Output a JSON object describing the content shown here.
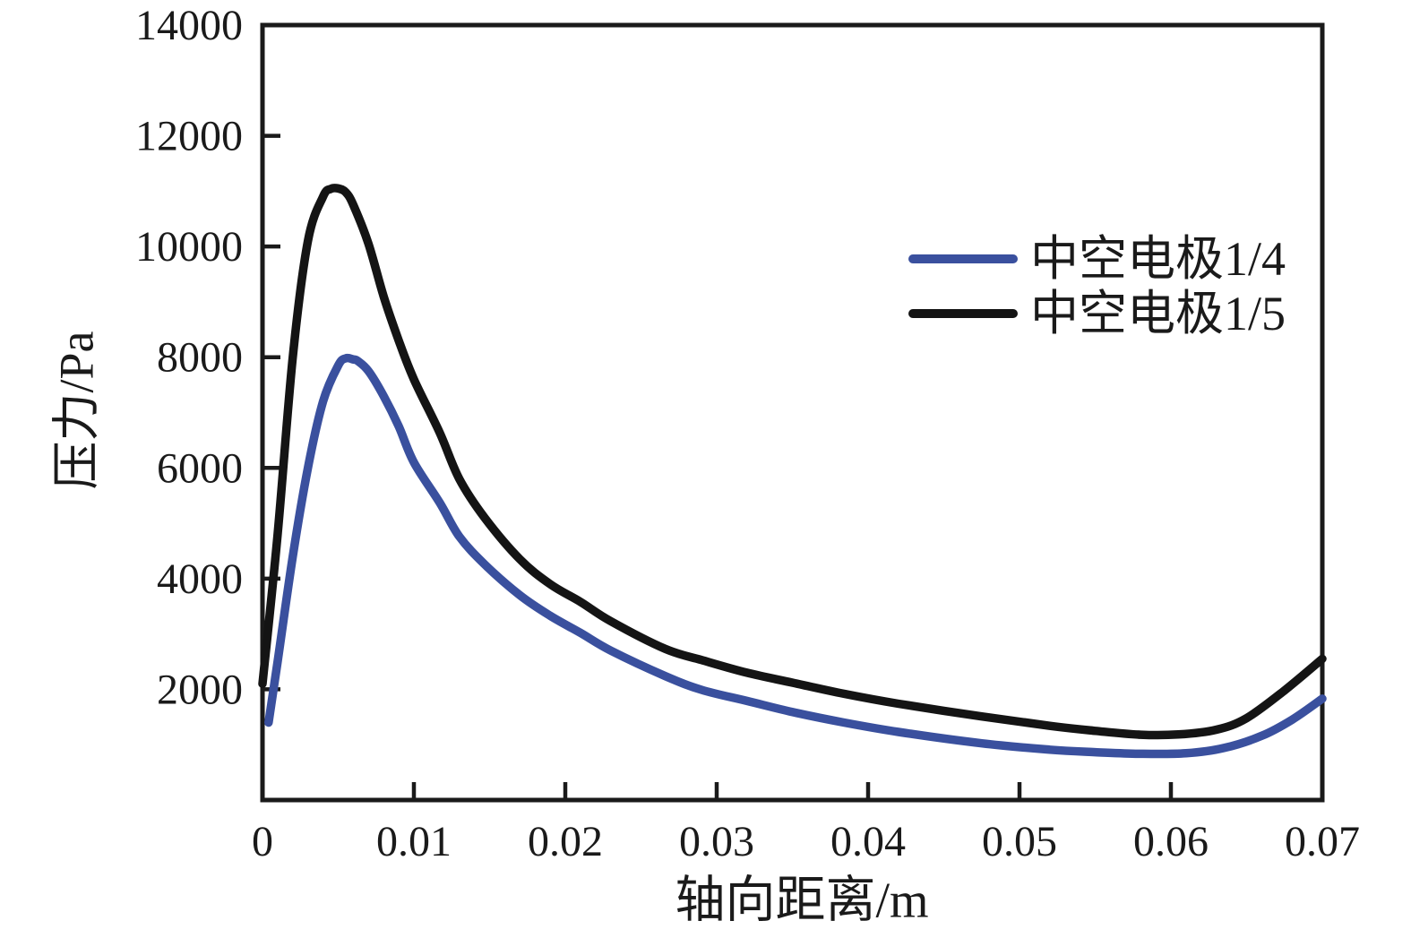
{
  "figure": {
    "background": "#ffffff",
    "axis_color": "#1a1a1a",
    "text_color": "#1a1a1a"
  },
  "chart_data": {
    "type": "line",
    "title": "",
    "xlabel": "轴向距离/m",
    "ylabel": "压力/Pa",
    "xlim": [
      0,
      0.07
    ],
    "ylim": [
      0,
      14000
    ],
    "grid": false,
    "legend_position": "upper-right-inside",
    "x_ticks": [
      0,
      0.01,
      0.02,
      0.03,
      0.04,
      0.05,
      0.06,
      0.07
    ],
    "x_tick_labels": [
      "0",
      "0.01",
      "0.02",
      "0.03",
      "0.04",
      "0.05",
      "0.06",
      "0.07"
    ],
    "y_ticks": [
      2000,
      4000,
      6000,
      8000,
      10000,
      12000,
      14000
    ],
    "y_tick_labels": [
      "2000",
      "4000",
      "6000",
      "8000",
      "10000",
      "12000",
      "14000"
    ],
    "series": [
      {
        "name": "中空电极1/4",
        "color": "#3a509e",
        "line_width": 9.5,
        "x": [
          0.0004,
          0.001,
          0.002,
          0.003,
          0.004,
          0.005,
          0.0055,
          0.006,
          0.0063,
          0.007,
          0.008,
          0.009,
          0.01,
          0.0117,
          0.013,
          0.0147,
          0.017,
          0.019,
          0.021,
          0.023,
          0.0266,
          0.029,
          0.032,
          0.035,
          0.0384,
          0.042,
          0.0475,
          0.052,
          0.055,
          0.058,
          0.061,
          0.0635,
          0.066,
          0.068,
          0.07
        ],
        "values": [
          1400,
          2500,
          4400,
          6000,
          7200,
          7850,
          7980,
          7960,
          7930,
          7750,
          7300,
          6750,
          6100,
          5375,
          4760,
          4250,
          3700,
          3330,
          3020,
          2700,
          2240,
          1990,
          1790,
          1590,
          1400,
          1230,
          1025,
          910,
          865,
          835,
          845,
          940,
          1160,
          1450,
          1830
        ]
      },
      {
        "name": "中空电极1/5",
        "color": "#141414",
        "line_width": 9.5,
        "x": [
          0,
          0.001,
          0.002,
          0.003,
          0.004,
          0.0045,
          0.005,
          0.0055,
          0.006,
          0.007,
          0.008,
          0.009,
          0.01,
          0.0117,
          0.013,
          0.0147,
          0.017,
          0.019,
          0.021,
          0.023,
          0.0266,
          0.029,
          0.032,
          0.035,
          0.0384,
          0.042,
          0.0475,
          0.052,
          0.055,
          0.058,
          0.0605,
          0.063,
          0.065,
          0.0675,
          0.07
        ],
        "values": [
          2100,
          4800,
          8000,
          10100,
          10900,
          11040,
          11050,
          10980,
          10750,
          10050,
          9100,
          8300,
          7600,
          6640,
          5800,
          5090,
          4350,
          3900,
          3580,
          3230,
          2730,
          2530,
          2300,
          2120,
          1920,
          1740,
          1510,
          1340,
          1250,
          1180,
          1185,
          1270,
          1480,
          1980,
          2550
        ]
      }
    ]
  }
}
